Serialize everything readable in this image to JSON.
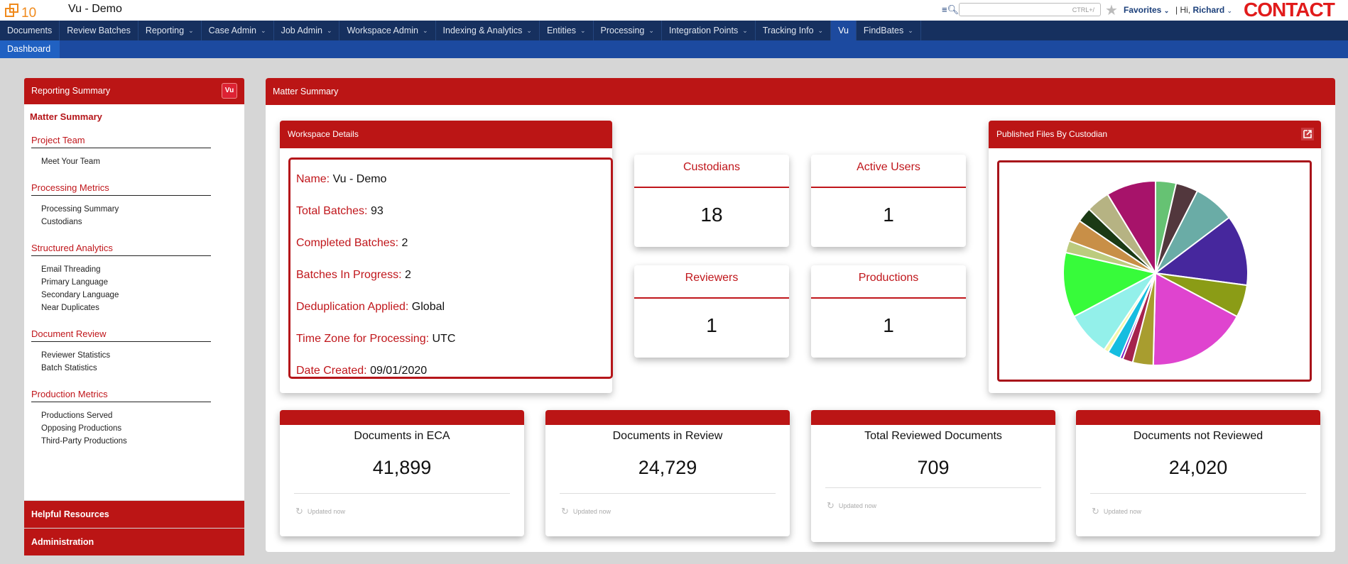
{
  "header": {
    "logo_text": "10",
    "app_title": "Vu - Demo",
    "search_hint": "CTRL+/",
    "favorites_label": "Favorites",
    "greeting": "Hi,",
    "user_name": "Richard",
    "contact_label": "CONTACT"
  },
  "nav": {
    "items": [
      {
        "label": "Documents",
        "dropdown": false
      },
      {
        "label": "Review Batches",
        "dropdown": false
      },
      {
        "label": "Reporting",
        "dropdown": true
      },
      {
        "label": "Case Admin",
        "dropdown": true
      },
      {
        "label": "Job Admin",
        "dropdown": true
      },
      {
        "label": "Workspace Admin",
        "dropdown": true
      },
      {
        "label": "Indexing & Analytics",
        "dropdown": true
      },
      {
        "label": "Entities",
        "dropdown": true
      },
      {
        "label": "Processing",
        "dropdown": true
      },
      {
        "label": "Integration Points",
        "dropdown": true
      },
      {
        "label": "Tracking Info",
        "dropdown": true
      },
      {
        "label": "Vu",
        "dropdown": false,
        "active": true
      },
      {
        "label": "FindBates",
        "dropdown": true
      }
    ],
    "sub_items": [
      "Dashboard"
    ]
  },
  "sidebar": {
    "title": "Reporting Summary",
    "badge": "Vu",
    "active_item": "Matter Summary",
    "sections": [
      {
        "title": "Project Team",
        "links": [
          "Meet Your Team"
        ]
      },
      {
        "title": "Processing Metrics",
        "links": [
          "Processing Summary",
          "Custodians"
        ]
      },
      {
        "title": "Structured Analytics",
        "links": [
          "Email Threading",
          "Primary Language",
          "Secondary Language",
          "Near Duplicates"
        ]
      },
      {
        "title": "Document Review",
        "links": [
          "Reviewer Statistics",
          "Batch Statistics"
        ]
      },
      {
        "title": "Production Metrics",
        "links": [
          "Productions Served",
          "Opposing Productions",
          "Third-Party Productions"
        ]
      }
    ],
    "footer_items": [
      "Helpful Resources",
      "Administration"
    ]
  },
  "main": {
    "title": "Matter Summary",
    "workspace": {
      "title": "Workspace Details",
      "rows": [
        {
          "key": "Name:",
          "value": "Vu - Demo"
        },
        {
          "key": "Total Batches:",
          "value": "93"
        },
        {
          "key": "Completed Batches:",
          "value": "2"
        },
        {
          "key": "Batches In Progress:",
          "value": "2"
        },
        {
          "key": "Deduplication Applied:",
          "value": "Global"
        },
        {
          "key": "Time Zone for Processing:",
          "value": "UTC"
        },
        {
          "key": "Date Created:",
          "value": "09/01/2020"
        }
      ]
    },
    "stats": [
      {
        "label": "Custodians",
        "value": "18"
      },
      {
        "label": "Active Users",
        "value": "1"
      },
      {
        "label": "Reviewers",
        "value": "1"
      },
      {
        "label": "Productions",
        "value": "1"
      }
    ],
    "chart_card_title": "Published Files By Custodian",
    "kpis": [
      {
        "label": "Documents in ECA",
        "value": "41,899",
        "updated": "Updated now"
      },
      {
        "label": "Documents in Review",
        "value": "24,729",
        "updated": "Updated now"
      },
      {
        "label": "Total Reviewed Documents",
        "value": "709",
        "updated": "Updated now"
      },
      {
        "label": "Documents not Reviewed",
        "value": "24,020",
        "updated": "Updated now"
      }
    ]
  },
  "chart_data": {
    "type": "pie",
    "title": "Published Files By Custodian",
    "legend": "none",
    "slices": [
      {
        "color": "#66c273",
        "value": 3.6
      },
      {
        "color": "#52373d",
        "value": 3.9
      },
      {
        "color": "#6aaca6",
        "value": 7.2
      },
      {
        "color": "#46279d",
        "value": 12.4
      },
      {
        "color": "#8b9c16",
        "value": 5.7
      },
      {
        "color": "#df44cf",
        "value": 17.6
      },
      {
        "color": "#a89d2f",
        "value": 3.6
      },
      {
        "color": "#a5234d",
        "value": 1.8
      },
      {
        "color": "#7a10c4",
        "value": 0.5
      },
      {
        "color": "#15bde0",
        "value": 2.3
      },
      {
        "color": "#f4f7a8",
        "value": 0.8
      },
      {
        "color": "#93f0ea",
        "value": 7.8
      },
      {
        "color": "#37fb3a",
        "value": 11.4
      },
      {
        "color": "#bccb7e",
        "value": 2.1
      },
      {
        "color": "#c88f47",
        "value": 3.9
      },
      {
        "color": "#1b3a15",
        "value": 2.6
      },
      {
        "color": "#b6b383",
        "value": 4.1
      },
      {
        "color": "#a7136a",
        "value": 8.7
      }
    ]
  }
}
